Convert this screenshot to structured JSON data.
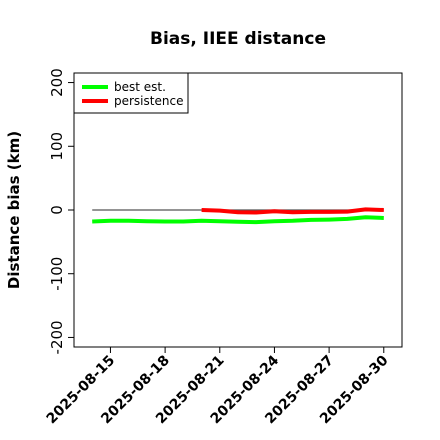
{
  "chart_data": {
    "type": "line",
    "title": "Bias, IIEE distance",
    "xlabel": "",
    "ylabel": "Distance bias (km)",
    "xlim": [
      "2025-08-13",
      "2025-08-31"
    ],
    "ylim": [
      -215,
      215
    ],
    "x_ticks": [
      "2025-08-15",
      "2025-08-18",
      "2025-08-21",
      "2025-08-24",
      "2025-08-27",
      "2025-08-30"
    ],
    "y_ticks": [
      -200,
      -100,
      0,
      100,
      200
    ],
    "grid": false,
    "legend_position": "top-left",
    "zero_line": {
      "from": "2025-08-14",
      "to": "2025-08-30",
      "y": 0,
      "color": "#555555"
    },
    "series": [
      {
        "name": "best est.",
        "color": "#00ff00",
        "x": [
          "2025-08-14",
          "2025-08-15",
          "2025-08-16",
          "2025-08-17",
          "2025-08-18",
          "2025-08-19",
          "2025-08-20",
          "2025-08-21",
          "2025-08-22",
          "2025-08-23",
          "2025-08-24",
          "2025-08-25",
          "2025-08-26",
          "2025-08-27",
          "2025-08-28",
          "2025-08-29",
          "2025-08-30"
        ],
        "values": [
          -18,
          -17,
          -17,
          -17.5,
          -18,
          -18,
          -17,
          -17.5,
          -18.5,
          -19,
          -17.5,
          -17,
          -15.5,
          -15,
          -14,
          -11.5,
          -12.5
        ]
      },
      {
        "name": "persistence",
        "color": "#ff0000",
        "x": [
          "2025-08-20",
          "2025-08-21",
          "2025-08-22",
          "2025-08-23",
          "2025-08-24",
          "2025-08-25",
          "2025-08-26",
          "2025-08-27",
          "2025-08-28",
          "2025-08-29",
          "2025-08-30"
        ],
        "values": [
          0,
          -1,
          -3.5,
          -4,
          -2,
          -3.5,
          -3,
          -3,
          -2.5,
          1,
          0
        ]
      }
    ]
  }
}
